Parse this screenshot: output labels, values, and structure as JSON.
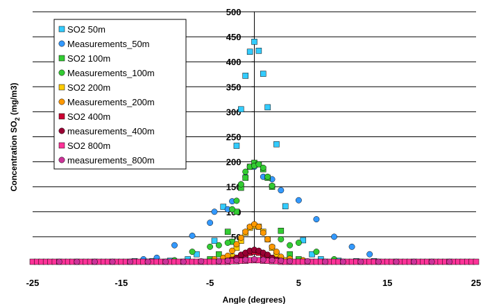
{
  "chart_data": {
    "type": "scatter",
    "xlabel": "Angle (degrees)",
    "ylabel_main": "Concentration SO",
    "ylabel_sub": "2",
    "ylabel_unit": " (mg/m3)",
    "xlim": [
      -25,
      25
    ],
    "ylim": [
      0,
      500
    ],
    "x_ticks": [
      -25,
      -15,
      -5,
      5,
      15,
      25
    ],
    "y_ticks": [
      50,
      100,
      150,
      200,
      250,
      300,
      350,
      400,
      450,
      500
    ],
    "grid": "horizontal",
    "legend_position": "top-left",
    "series": [
      {
        "name": "SO2 50m",
        "marker": "square",
        "color": "#33ccff",
        "x": [
          -2,
          -1.5,
          -1,
          -0.5,
          0,
          0.5,
          1,
          1.5,
          2.5,
          3.5,
          5.5,
          6.5,
          -3.5,
          -4.5,
          -6.5,
          -7.5,
          -9.5,
          -11.5,
          -13.5,
          7.5,
          9.5,
          11.5,
          13.5
        ],
        "y": [
          232,
          305,
          372,
          420,
          440,
          422,
          376,
          309,
          235,
          111,
          43,
          15,
          110,
          42,
          15,
          5,
          2,
          1,
          1,
          5,
          2,
          1,
          1
        ]
      },
      {
        "name": "Measurements_50m",
        "marker": "circle",
        "color": "#3399ff",
        "x": [
          -12.5,
          -11,
          -9,
          -7,
          -5,
          -4.5,
          -3,
          -2.5,
          -1.5,
          -1,
          0,
          1,
          2,
          3,
          5,
          7,
          9,
          11,
          13
        ],
        "y": [
          5,
          8,
          33,
          52,
          78,
          100,
          105,
          121,
          155,
          170,
          190,
          170,
          165,
          143,
          123,
          85,
          50,
          30,
          15
        ]
      },
      {
        "name": "SO2 100m",
        "marker": "square",
        "color": "#33cc33",
        "x": [
          -2.5,
          -2,
          -1.5,
          -1,
          -0.5,
          0,
          0.5,
          1,
          1.5,
          2,
          3,
          4,
          -3,
          -4,
          5,
          -5
        ],
        "y": [
          40,
          100,
          148,
          168,
          190,
          198,
          195,
          185,
          168,
          150,
          62,
          15,
          60,
          15,
          5,
          5
        ]
      },
      {
        "name": "Measurements_100m",
        "marker": "circle",
        "color": "#33cc33",
        "x": [
          -9,
          -7,
          -5,
          -4,
          -3,
          -2.5,
          -2,
          -1.5,
          -1,
          -0.5,
          0,
          0.5,
          1,
          1.5,
          2,
          3,
          4,
          5,
          7,
          9
        ],
        "y": [
          3,
          20,
          30,
          33,
          38,
          105,
          122,
          155,
          180,
          190,
          192,
          195,
          188,
          170,
          152,
          45,
          33,
          38,
          20,
          5
        ]
      },
      {
        "name": "SO2 200m",
        "marker": "square",
        "color": "#ffcc00",
        "x": [
          -3,
          -2.5,
          -2,
          -1.5,
          -1,
          -0.5,
          0,
          0.5,
          1,
          1.5,
          2,
          2.5,
          3,
          3.5,
          4
        ],
        "y": [
          2,
          10,
          28,
          42,
          58,
          68,
          72,
          70,
          60,
          45,
          28,
          14,
          6,
          3,
          1
        ]
      },
      {
        "name": "Measurements_200m",
        "marker": "circle",
        "color": "#ff9900",
        "x": [
          -4.5,
          -3.5,
          -3,
          -2.5,
          -2,
          -1.5,
          -1,
          -0.5,
          0,
          0.5,
          1,
          1.5,
          2,
          2.5,
          3,
          4,
          5.5
        ],
        "y": [
          5,
          8,
          12,
          22,
          35,
          48,
          60,
          70,
          75,
          70,
          58,
          45,
          30,
          20,
          10,
          6,
          3
        ]
      },
      {
        "name": "SO2 400m",
        "marker": "square",
        "color": "#cc0033",
        "x": [
          -3,
          -2.5,
          -2,
          -1.5,
          -1,
          -0.5,
          0,
          0.5,
          1,
          1.5,
          2,
          2.5,
          3
        ],
        "y": [
          1,
          3,
          6,
          10,
          15,
          18,
          20,
          18,
          15,
          10,
          6,
          3,
          1
        ]
      },
      {
        "name": "measurements_400m",
        "marker": "circle",
        "color": "#990033",
        "x": [
          -3,
          -2.5,
          -2,
          -1.5,
          -1,
          -0.5,
          0,
          0.5,
          1,
          1.5,
          2,
          2.5,
          3
        ],
        "y": [
          2,
          4,
          8,
          14,
          18,
          22,
          24,
          22,
          18,
          14,
          8,
          4,
          2
        ]
      },
      {
        "name": "SO2 800m",
        "marker": "square",
        "color": "#ff3399",
        "x": [
          -25,
          -24.5,
          -24,
          -23.5,
          -23,
          -22.5,
          -22,
          -21.5,
          -21,
          -20.5,
          -20,
          -19.5,
          -19,
          -18.5,
          -18,
          -17.5,
          -17,
          -16.5,
          -16,
          -15.5,
          -15,
          -14.5,
          -14,
          -13.5,
          -13,
          -12.5,
          -12,
          -11.5,
          -11,
          -10.5,
          -10,
          -9.5,
          -9,
          -8.5,
          -8,
          -7.5,
          -7,
          -6.5,
          -6,
          -5.5,
          -5,
          -4.5,
          -4,
          -3.5,
          -3,
          -2.5,
          -2,
          -1.5,
          -1,
          -0.5,
          0,
          0.5,
          1,
          1.5,
          2,
          2.5,
          3,
          3.5,
          4,
          4.5,
          5,
          5.5,
          6,
          6.5,
          7,
          7.5,
          8,
          8.5,
          9,
          9.5,
          10,
          10.5,
          11,
          11.5,
          12,
          12.5,
          13,
          13.5,
          14,
          14.5,
          15,
          15.5,
          16,
          16.5,
          17,
          17.5,
          18,
          18.5,
          19,
          19.5,
          20,
          20.5,
          21,
          21.5,
          22,
          22.5,
          23,
          23.5,
          24,
          24.5,
          25
        ],
        "y": [
          0,
          0,
          0,
          0,
          0,
          0,
          0,
          0,
          0,
          0,
          0,
          0,
          0,
          0,
          0,
          0,
          0,
          0,
          0,
          0,
          0,
          0,
          0,
          0,
          0,
          0,
          0,
          0,
          0,
          0,
          0,
          0,
          0,
          0,
          0,
          0,
          0,
          0,
          0,
          0,
          0,
          0,
          0,
          0,
          0,
          1,
          1,
          2,
          2,
          3,
          3,
          3,
          2,
          2,
          1,
          1,
          0,
          0,
          0,
          0,
          0,
          0,
          0,
          0,
          0,
          0,
          0,
          0,
          0,
          0,
          0,
          0,
          0,
          0,
          0,
          0,
          0,
          0,
          0,
          0,
          0,
          0,
          0,
          0,
          0,
          0,
          0,
          0,
          0,
          0,
          0,
          0,
          0,
          0,
          0,
          0,
          0,
          0,
          0,
          0,
          0
        ]
      },
      {
        "name": "measurements_800m",
        "marker": "circle",
        "color": "#cc3399",
        "x": [
          -22,
          -20,
          -18,
          -16,
          -14,
          -12,
          -10,
          -8,
          -6,
          -4,
          -3,
          -2,
          -1,
          0,
          1,
          2,
          3,
          4,
          6,
          8,
          10,
          12,
          14,
          16,
          18,
          20,
          22
        ],
        "y": [
          0,
          0,
          0,
          0,
          0,
          0,
          0,
          0,
          1,
          1,
          2,
          3,
          4,
          5,
          4,
          3,
          2,
          1,
          1,
          0,
          0,
          0,
          0,
          0,
          0,
          0,
          0
        ]
      }
    ]
  }
}
